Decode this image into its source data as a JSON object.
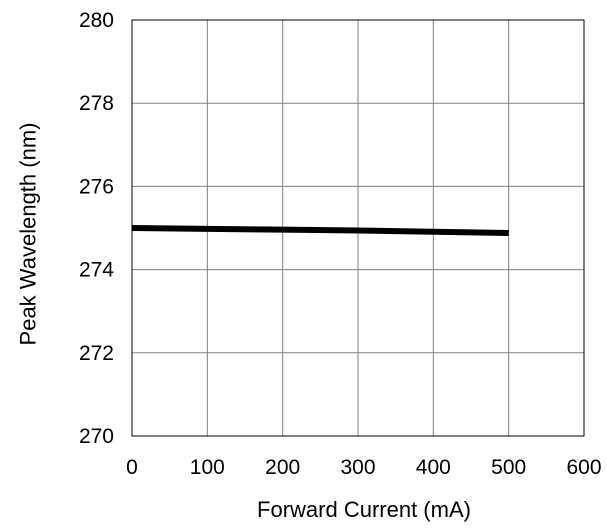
{
  "chart_data": {
    "type": "line",
    "title": "",
    "xlabel": "Forward Current (mA)",
    "ylabel": "Peak Wavelength (nm)",
    "xlim": [
      0,
      600
    ],
    "ylim": [
      270,
      280
    ],
    "xticks": [
      0,
      100,
      200,
      300,
      400,
      500,
      600
    ],
    "yticks": [
      270,
      272,
      274,
      276,
      278,
      280
    ],
    "x_tick_labels": [
      "0",
      "100",
      "200",
      "300",
      "400",
      "500",
      "600"
    ],
    "y_tick_labels": [
      "270",
      "272",
      "274",
      "276",
      "278",
      "280"
    ],
    "grid": true,
    "legend": "none",
    "series": [
      {
        "color": "#000000",
        "x": [
          0,
          100,
          200,
          300,
          400,
          500
        ],
        "y": [
          275.0,
          274.98,
          274.96,
          274.94,
          274.91,
          274.88
        ]
      }
    ]
  }
}
